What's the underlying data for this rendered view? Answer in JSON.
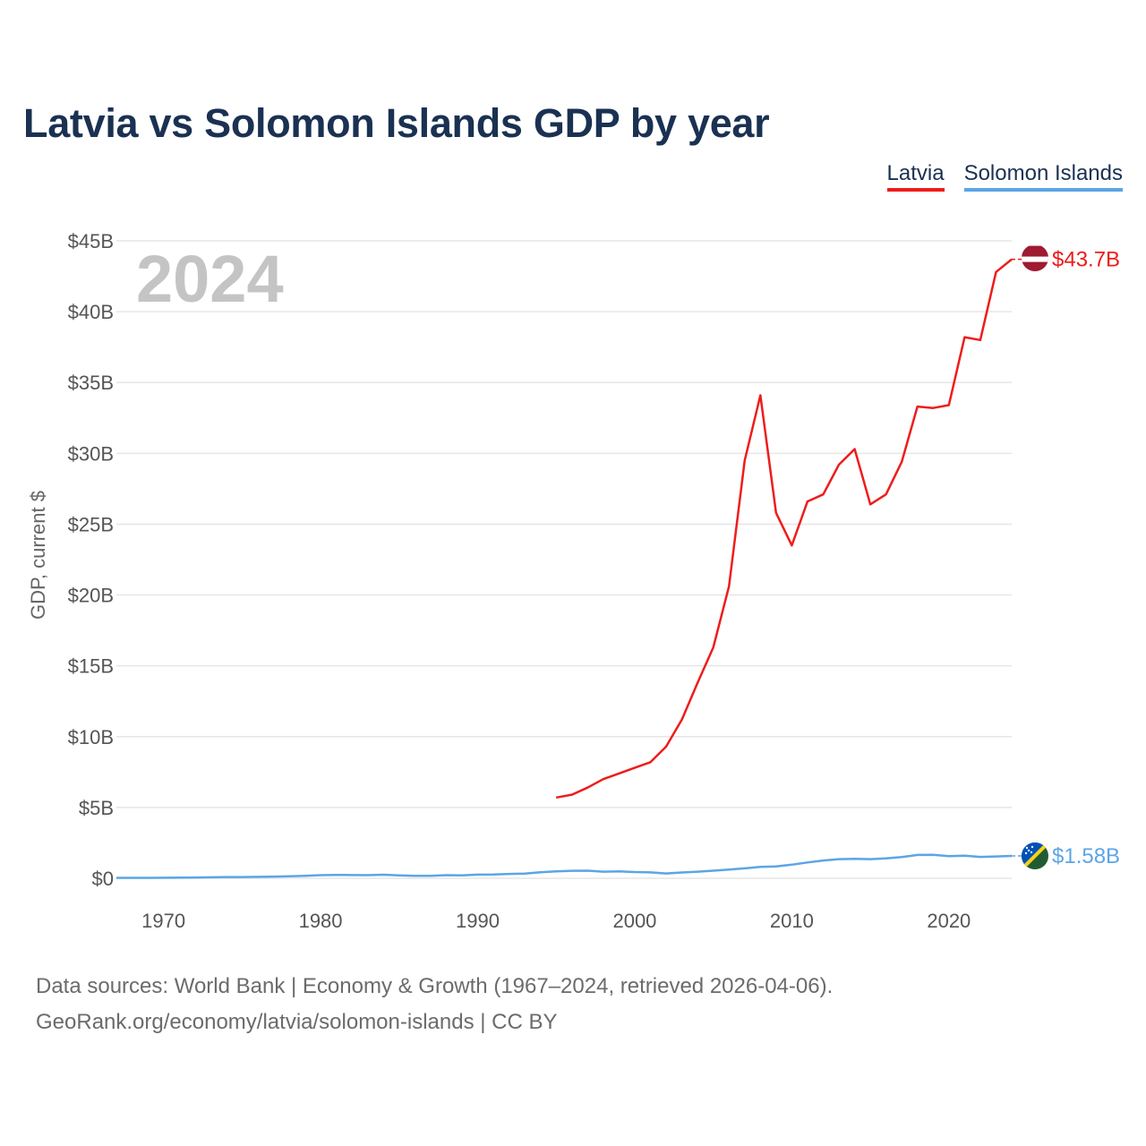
{
  "title": "Latvia vs Solomon Islands GDP by year",
  "legend": [
    {
      "name": "Latvia",
      "color": "#ee1c1c"
    },
    {
      "name": "Solomon Islands",
      "color": "#5ca5e6"
    }
  ],
  "year_overlay": "2024",
  "footer": {
    "line1": "Data sources: World Bank | Economy & Growth (1967–2024, retrieved 2026-04-06).",
    "line2": "GeoRank.org/economy/latvia/solomon-islands | CC BY"
  },
  "chart_data": {
    "type": "line",
    "title": "Latvia vs Solomon Islands GDP by year",
    "xlabel": "",
    "ylabel": "GDP, current $",
    "xlim": [
      1967,
      2024
    ],
    "ylim": [
      0,
      45
    ],
    "x_ticks": [
      1970,
      1980,
      1990,
      2000,
      2010,
      2020
    ],
    "y_ticks": [
      0,
      5,
      10,
      15,
      20,
      25,
      30,
      35,
      40,
      45
    ],
    "y_tick_labels": [
      "$0",
      "$5B",
      "$10B",
      "$15B",
      "$20B",
      "$25B",
      "$30B",
      "$35B",
      "$40B",
      "$45B"
    ],
    "grid": true,
    "legend_position": "top-right",
    "series": [
      {
        "name": "Latvia",
        "color": "#ee1c1c",
        "end_label": "$43.7B",
        "flag_icon": "latvia-flag-icon",
        "x": [
          1995,
          1996,
          1997,
          1998,
          1999,
          2000,
          2001,
          2002,
          2003,
          2004,
          2005,
          2006,
          2007,
          2008,
          2009,
          2010,
          2011,
          2012,
          2013,
          2014,
          2015,
          2016,
          2017,
          2018,
          2019,
          2020,
          2021,
          2022,
          2023,
          2024
        ],
        "values": [
          5.7,
          5.9,
          6.4,
          7.0,
          7.4,
          7.8,
          8.2,
          9.3,
          11.2,
          13.8,
          16.3,
          20.6,
          29.5,
          34.1,
          25.8,
          23.5,
          26.6,
          27.1,
          29.2,
          30.3,
          26.4,
          27.1,
          29.4,
          33.3,
          33.2,
          33.4,
          38.2,
          38.0,
          42.8,
          43.7
        ]
      },
      {
        "name": "Solomon Islands",
        "color": "#5ca5e6",
        "end_label": "$1.58B",
        "flag_icon": "solomon-islands-flag-icon",
        "x": [
          1967,
          1968,
          1969,
          1970,
          1971,
          1972,
          1973,
          1974,
          1975,
          1976,
          1977,
          1978,
          1979,
          1980,
          1981,
          1982,
          1983,
          1984,
          1985,
          1986,
          1987,
          1988,
          1989,
          1990,
          1991,
          1992,
          1993,
          1994,
          1995,
          1996,
          1997,
          1998,
          1999,
          2000,
          2001,
          2002,
          2003,
          2004,
          2005,
          2006,
          2007,
          2008,
          2009,
          2010,
          2011,
          2012,
          2013,
          2014,
          2015,
          2016,
          2017,
          2018,
          2019,
          2020,
          2021,
          2022,
          2023,
          2024
        ],
        "values": [
          0.03,
          0.03,
          0.03,
          0.04,
          0.05,
          0.06,
          0.07,
          0.09,
          0.09,
          0.1,
          0.12,
          0.14,
          0.18,
          0.22,
          0.24,
          0.23,
          0.22,
          0.25,
          0.2,
          0.17,
          0.18,
          0.22,
          0.21,
          0.26,
          0.27,
          0.31,
          0.33,
          0.43,
          0.49,
          0.53,
          0.54,
          0.47,
          0.49,
          0.44,
          0.42,
          0.34,
          0.41,
          0.47,
          0.54,
          0.62,
          0.7,
          0.8,
          0.84,
          0.96,
          1.12,
          1.26,
          1.35,
          1.37,
          1.35,
          1.41,
          1.5,
          1.65,
          1.66,
          1.57,
          1.59,
          1.51,
          1.54,
          1.58
        ]
      }
    ]
  }
}
